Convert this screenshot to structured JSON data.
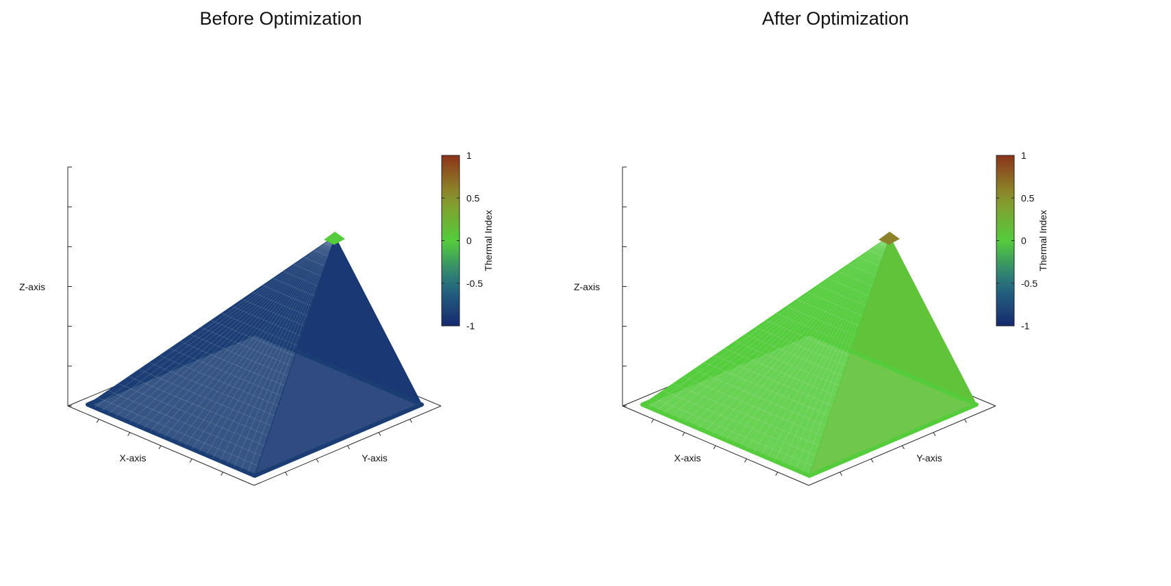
{
  "chart_data": [
    {
      "type": "surface3d",
      "title": "Before Optimization",
      "shape": "pyramid",
      "xlabel": "X-axis",
      "ylabel": "Y-axis",
      "zlabel": "Z-axis",
      "colorbar": {
        "label": "Thermal Index",
        "range": [
          -1,
          1
        ],
        "ticks": [
          "1",
          "0.5",
          "0",
          "-0.5",
          "-1"
        ]
      },
      "face_values": {
        "front": -0.85,
        "right": -0.9,
        "back": -0.9,
        "left": -0.95,
        "apex": 0
      },
      "legend_position": "right"
    },
    {
      "type": "surface3d",
      "title": "After Optimization",
      "shape": "pyramid",
      "xlabel": "X-axis",
      "ylabel": "Y-axis",
      "zlabel": "Z-axis",
      "colorbar": {
        "label": "Thermal Index",
        "range": [
          -1,
          1
        ],
        "ticks": [
          "1",
          "0.5",
          "0",
          "-0.5",
          "-1"
        ]
      },
      "face_values": {
        "front": 0.0,
        "right": 0.1,
        "back": 0.02,
        "left": 0.0,
        "apex": 0.6
      },
      "legend_position": "right"
    }
  ]
}
